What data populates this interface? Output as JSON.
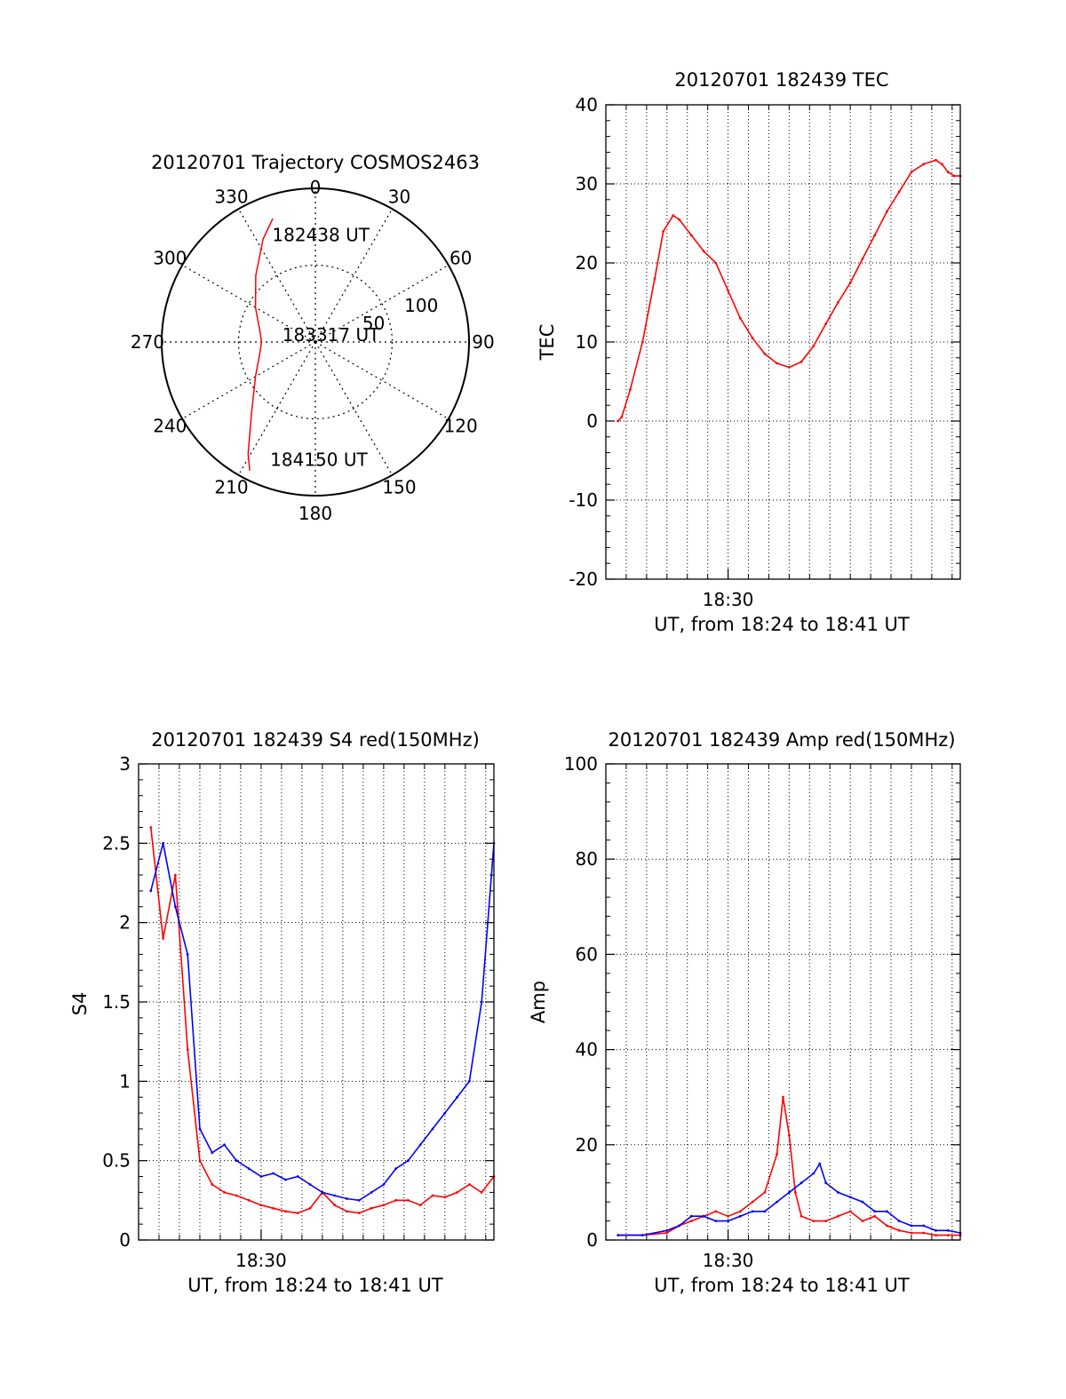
{
  "chart_data": [
    {
      "type": "polar",
      "title": "20120701 Trajectory COSMOS2463",
      "angle_labels": [
        "0",
        "30",
        "60",
        "90",
        "120",
        "150",
        "180",
        "210",
        "240",
        "270",
        "300",
        "330"
      ],
      "radial_labels": [
        "50",
        "100"
      ],
      "radial_label_values": [
        50,
        100
      ],
      "rmax": 100,
      "trajectory_color": "#ff0000",
      "trajectory": [
        {
          "az": 341,
          "r": 85
        },
        {
          "az": 333,
          "r": 75
        },
        {
          "az": 318,
          "r": 58
        },
        {
          "az": 300,
          "r": 45
        },
        {
          "az": 282,
          "r": 37
        },
        {
          "az": 270,
          "r": 35
        },
        {
          "az": 258,
          "r": 37
        },
        {
          "az": 240,
          "r": 45
        },
        {
          "az": 222,
          "r": 62
        },
        {
          "az": 211,
          "r": 85
        },
        {
          "az": 207,
          "r": 94
        }
      ],
      "annotations": [
        {
          "text": "182438 UT",
          "az": 338,
          "r": 75
        },
        {
          "text": "183317 UT",
          "az": 282,
          "r": 22
        },
        {
          "text": "184150 UT",
          "az": 201,
          "r": 82
        }
      ]
    },
    {
      "type": "line",
      "title": "20120701 182439 TEC",
      "xlabel": "UT, from 18:24 to 18:41 UT",
      "ylabel": "TEC",
      "xlim": [
        18.4,
        18.69
      ],
      "ylim": [
        -20,
        40
      ],
      "yticks": [
        -20,
        -10,
        0,
        10,
        20,
        30,
        40
      ],
      "xticks": [
        {
          "value": 18.5,
          "label": "18:30"
        }
      ],
      "grid": true,
      "series": [
        {
          "color": "#ff0000",
          "x": [
            18.41,
            18.413,
            18.42,
            18.43,
            18.44,
            18.447,
            18.455,
            18.46,
            18.47,
            18.48,
            18.49,
            18.5,
            18.51,
            18.52,
            18.53,
            18.54,
            18.55,
            18.56,
            18.57,
            18.58,
            18.59,
            18.6,
            18.61,
            18.62,
            18.63,
            18.64,
            18.65,
            18.66,
            18.67,
            18.675,
            18.68,
            18.685,
            18.69
          ],
          "y": [
            0,
            0.5,
            4,
            10,
            18,
            24,
            26,
            25.5,
            23.5,
            21.5,
            20,
            16.5,
            13,
            10.5,
            8.5,
            7.3,
            6.8,
            7.5,
            9.5,
            12.3,
            15,
            17.5,
            20.5,
            23.5,
            26.5,
            29,
            31.5,
            32.5,
            33,
            32.5,
            31.5,
            31,
            31
          ]
        }
      ]
    },
    {
      "type": "line",
      "title": "20120701 182439 S4 red(150MHz)",
      "xlabel": "UT, from 18:24 to 18:41 UT",
      "ylabel": "S4",
      "xlim": [
        18.4,
        18.69
      ],
      "ylim": [
        0,
        3
      ],
      "yticks": [
        0,
        0.5,
        1,
        1.5,
        2,
        2.5,
        3
      ],
      "ytick_labels": [
        "0",
        "0.5",
        "1",
        "1.5",
        "2",
        "2.5",
        "3"
      ],
      "xticks": [
        {
          "value": 18.5,
          "label": "18:30"
        }
      ],
      "grid": true,
      "series": [
        {
          "color": "#ff0000",
          "x": [
            18.41,
            18.42,
            18.43,
            18.44,
            18.45,
            18.46,
            18.47,
            18.48,
            18.49,
            18.5,
            18.51,
            18.52,
            18.53,
            18.54,
            18.55,
            18.56,
            18.57,
            18.58,
            18.59,
            18.6,
            18.61,
            18.62,
            18.63,
            18.64,
            18.65,
            18.66,
            18.67,
            18.68,
            18.69
          ],
          "y": [
            2.6,
            1.9,
            2.3,
            1.2,
            0.5,
            0.35,
            0.3,
            0.28,
            0.25,
            0.22,
            0.2,
            0.18,
            0.17,
            0.2,
            0.3,
            0.22,
            0.18,
            0.17,
            0.2,
            0.22,
            0.25,
            0.25,
            0.22,
            0.28,
            0.27,
            0.3,
            0.35,
            0.3,
            0.4
          ]
        },
        {
          "color": "#0000ff",
          "x": [
            18.41,
            18.42,
            18.43,
            18.44,
            18.45,
            18.46,
            18.47,
            18.48,
            18.49,
            18.5,
            18.51,
            18.52,
            18.53,
            18.54,
            18.55,
            18.56,
            18.57,
            18.58,
            18.59,
            18.6,
            18.61,
            18.62,
            18.63,
            18.64,
            18.65,
            18.66,
            18.67,
            18.68,
            18.69
          ],
          "y": [
            2.2,
            2.5,
            2.1,
            1.8,
            0.7,
            0.55,
            0.6,
            0.5,
            0.45,
            0.4,
            0.42,
            0.38,
            0.4,
            0.35,
            0.3,
            0.28,
            0.26,
            0.25,
            0.3,
            0.35,
            0.45,
            0.5,
            0.6,
            0.7,
            0.8,
            0.9,
            1.0,
            1.5,
            2.5
          ]
        }
      ]
    },
    {
      "type": "line",
      "title": "20120701 182439 Amp red(150MHz)",
      "xlabel": "UT, from 18:24 to 18:41 UT",
      "ylabel": "Amp",
      "xlim": [
        18.4,
        18.69
      ],
      "ylim": [
        0,
        100
      ],
      "yticks": [
        0,
        20,
        40,
        60,
        80,
        100
      ],
      "xticks": [
        {
          "value": 18.5,
          "label": "18:30"
        }
      ],
      "grid": true,
      "series": [
        {
          "color": "#ff0000",
          "x": [
            18.41,
            18.43,
            18.45,
            18.46,
            18.47,
            18.48,
            18.49,
            18.5,
            18.51,
            18.52,
            18.53,
            18.54,
            18.545,
            18.55,
            18.555,
            18.56,
            18.57,
            18.58,
            18.59,
            18.6,
            18.61,
            18.62,
            18.63,
            18.64,
            18.65,
            18.66,
            18.67,
            18.68,
            18.69
          ],
          "y": [
            1,
            1,
            1.5,
            3,
            4,
            5,
            6,
            5,
            6,
            8,
            10,
            18,
            30,
            22,
            10,
            5,
            4,
            4,
            5,
            6,
            4,
            5,
            3,
            2,
            1.5,
            1.5,
            1,
            1,
            1
          ]
        },
        {
          "color": "#0000ff",
          "x": [
            18.41,
            18.43,
            18.45,
            18.46,
            18.47,
            18.48,
            18.49,
            18.5,
            18.51,
            18.52,
            18.53,
            18.54,
            18.55,
            18.56,
            18.57,
            18.575,
            18.58,
            18.59,
            18.6,
            18.61,
            18.62,
            18.63,
            18.64,
            18.65,
            18.66,
            18.67,
            18.68,
            18.69
          ],
          "y": [
            1,
            1,
            2,
            3,
            5,
            5,
            4,
            4,
            5,
            6,
            6,
            8,
            10,
            12,
            14,
            16,
            12,
            10,
            9,
            8,
            6,
            6,
            4,
            3,
            3,
            2,
            2,
            1.5
          ]
        }
      ]
    }
  ]
}
